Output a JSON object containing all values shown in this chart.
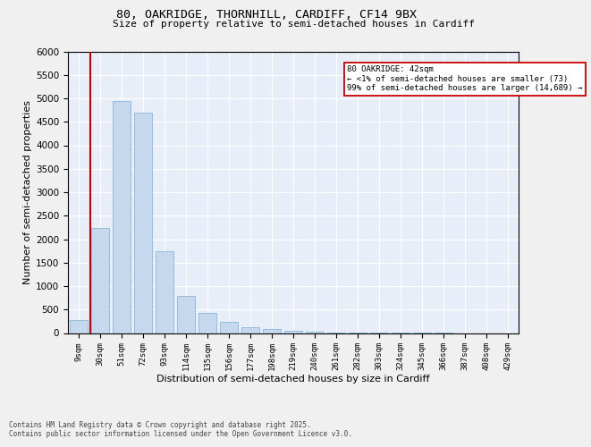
{
  "title1": "80, OAKRIDGE, THORNHILL, CARDIFF, CF14 9BX",
  "title2": "Size of property relative to semi-detached houses in Cardiff",
  "xlabel": "Distribution of semi-detached houses by size in Cardiff",
  "ylabel": "Number of semi-detached properties",
  "bar_color": "#c5d8ee",
  "bar_edge_color": "#7aaed4",
  "background_color": "#e8eef8",
  "grid_color": "#ffffff",
  "vline_color": "#cc0000",
  "annotation_text": "80 OAKRIDGE: 42sqm\n← <1% of semi-detached houses are smaller (73)\n99% of semi-detached houses are larger (14,689) →",
  "annotation_box_color": "#ffffff",
  "annotation_box_edge": "#cc0000",
  "footnote": "Contains HM Land Registry data © Crown copyright and database right 2025.\nContains public sector information licensed under the Open Government Licence v3.0.",
  "categories": [
    "9sqm",
    "30sqm",
    "51sqm",
    "72sqm",
    "93sqm",
    "114sqm",
    "135sqm",
    "156sqm",
    "177sqm",
    "198sqm",
    "219sqm",
    "240sqm",
    "261sqm",
    "282sqm",
    "303sqm",
    "324sqm",
    "345sqm",
    "366sqm",
    "387sqm",
    "408sqm",
    "429sqm"
  ],
  "values": [
    270,
    2230,
    4950,
    4700,
    1750,
    800,
    420,
    230,
    120,
    80,
    50,
    30,
    10,
    5,
    3,
    2,
    1,
    1,
    0,
    0,
    0
  ],
  "ylim": [
    0,
    6000
  ],
  "yticks": [
    0,
    500,
    1000,
    1500,
    2000,
    2500,
    3000,
    3500,
    4000,
    4500,
    5000,
    5500,
    6000
  ],
  "vline_index": 0.55,
  "fig_facecolor": "#f0f0f0"
}
